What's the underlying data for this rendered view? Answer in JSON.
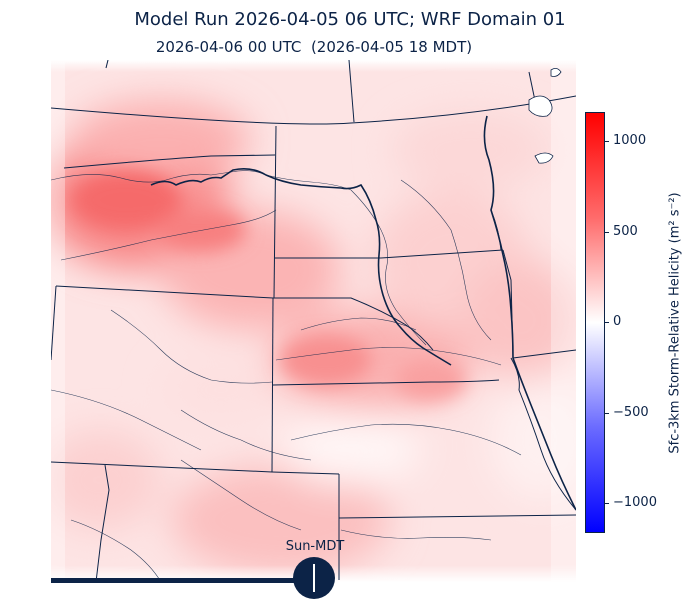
{
  "title": "Model Run 2026-04-05 06 UTC; WRF Domain 01",
  "subtitle": "2026-04-06 00 UTC  (2026-04-05 18 MDT)",
  "map": {
    "field": "Sfc-3km Storm-Relative Helicity",
    "colors": {
      "positive": "#ff0000",
      "negative": "#0000ff",
      "neutral": "#ffffff",
      "boundary": "#0c2347"
    }
  },
  "colorbar": {
    "title": "Sfc-3km Storm-Relative Helicity (m² s⁻²)",
    "ticks": [
      "1000",
      "500",
      "0",
      "−500",
      "−1000"
    ],
    "range": [
      -1150,
      1150
    ]
  },
  "sun_indicator": {
    "label": "Sun-MDT"
  }
}
